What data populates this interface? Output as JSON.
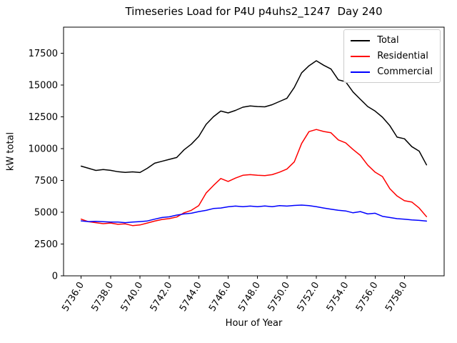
{
  "chart_data": {
    "type": "line",
    "title": "Timeseries Load for P4U p4uhs2_1247  Day 240",
    "xlabel": "Hour of Year",
    "ylabel": "kW total",
    "grid": false,
    "legend_position": "upper right",
    "xlim": [
      5734.8,
      5760.7
    ],
    "ylim": [
      0,
      19540
    ],
    "xticks": [
      5736,
      5738,
      5740,
      5742,
      5744,
      5746,
      5748,
      5750,
      5752,
      5754,
      5756,
      5758
    ],
    "xtick_labels": [
      "5736.0",
      "5738.0",
      "5740.0",
      "5742.0",
      "5744.0",
      "5746.0",
      "5748.0",
      "5750.0",
      "5752.0",
      "5754.0",
      "5756.0",
      "5758.0"
    ],
    "yticks": [
      0,
      2500,
      5000,
      7500,
      10000,
      12500,
      15000,
      17500
    ],
    "ytick_labels": [
      "0",
      "2500",
      "5000",
      "7500",
      "10000",
      "12500",
      "15000",
      "17500"
    ],
    "x": [
      5736.0,
      5736.5,
      5737.0,
      5737.5,
      5738.0,
      5738.5,
      5739.0,
      5739.5,
      5740.0,
      5740.5,
      5741.0,
      5741.5,
      5742.0,
      5742.5,
      5743.0,
      5743.5,
      5744.0,
      5744.5,
      5745.0,
      5745.5,
      5746.0,
      5746.5,
      5747.0,
      5747.5,
      5748.0,
      5748.5,
      5749.0,
      5749.5,
      5750.0,
      5750.5,
      5751.0,
      5751.5,
      5752.0,
      5752.5,
      5753.0,
      5753.5,
      5754.0,
      5754.5,
      5755.0,
      5755.5,
      5756.0,
      5756.5,
      5757.0,
      5757.5,
      5758.0,
      5758.5,
      5759.0,
      5759.5
    ],
    "series": [
      {
        "name": "Total",
        "color": "#000000",
        "values": [
          8620,
          8450,
          8280,
          8350,
          8290,
          8180,
          8130,
          8170,
          8120,
          8450,
          8850,
          9000,
          9150,
          9300,
          9900,
          10350,
          10950,
          11900,
          12500,
          12950,
          12800,
          13000,
          13250,
          13350,
          13300,
          13280,
          13450,
          13700,
          13950,
          14800,
          15950,
          16500,
          16900,
          16550,
          16250,
          15400,
          15250,
          14450,
          13870,
          13300,
          12950,
          12465,
          11805,
          10900,
          10770,
          10150,
          9800,
          8720
        ]
      },
      {
        "name": "Residential",
        "color": "#ff0000",
        "values": [
          4450,
          4250,
          4180,
          4100,
          4150,
          4050,
          4080,
          3950,
          4000,
          4150,
          4300,
          4430,
          4500,
          4620,
          4950,
          5150,
          5520,
          6500,
          7100,
          7650,
          7420,
          7680,
          7900,
          7950,
          7900,
          7870,
          7950,
          8150,
          8390,
          8950,
          10400,
          11330,
          11500,
          11340,
          11240,
          10680,
          10450,
          9930,
          9460,
          8700,
          8150,
          7800,
          6850,
          6270,
          5900,
          5800,
          5330,
          4650
        ]
      },
      {
        "name": "Commercial",
        "color": "#0000ff",
        "values": [
          4320,
          4260,
          4280,
          4250,
          4230,
          4220,
          4180,
          4220,
          4260,
          4310,
          4450,
          4580,
          4640,
          4770,
          4860,
          4920,
          5050,
          5145,
          5290,
          5330,
          5425,
          5480,
          5430,
          5480,
          5430,
          5490,
          5430,
          5520,
          5480,
          5530,
          5560,
          5520,
          5430,
          5330,
          5240,
          5150,
          5100,
          4950,
          5050,
          4860,
          4920,
          4680,
          4580,
          4490,
          4450,
          4390,
          4360,
          4300
        ]
      }
    ]
  }
}
